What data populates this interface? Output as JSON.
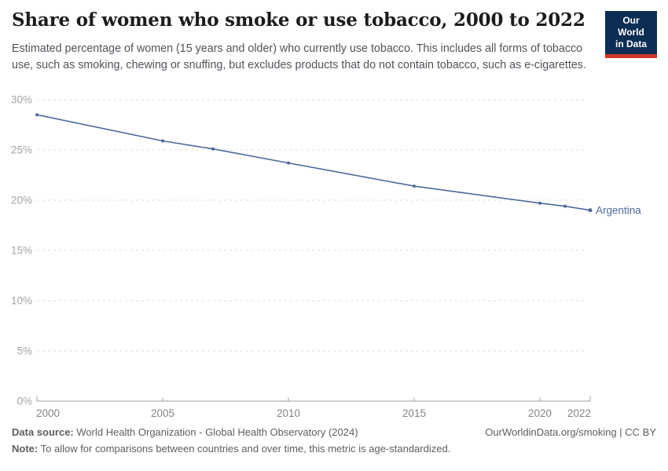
{
  "header": {
    "title": "Share of women who smoke or use tobacco, 2000 to 2022",
    "subtitle": "Estimated percentage of women (15 years and older) who currently use tobacco. This includes all forms of tobacco use, such as smoking, chewing or snuffing, but excludes products that do not contain tobacco, such as e-cigarettes.",
    "logo": {
      "line1": "Our World",
      "line2": "in Data",
      "bg_color": "#0d2e54",
      "stripe_color": "#d2392c"
    }
  },
  "chart_data": {
    "type": "line",
    "title": "Share of women who smoke or use tobacco, 2000 to 2022",
    "xlabel": "",
    "ylabel": "",
    "xlim": [
      2000,
      2022
    ],
    "ylim": [
      0,
      30
    ],
    "xticks": [
      2000,
      2005,
      2010,
      2015,
      2020,
      2022
    ],
    "yticks": [
      0,
      5,
      10,
      15,
      20,
      25,
      30
    ],
    "ytick_suffix": "%",
    "grid": "horizontal-dashed",
    "legend_position": "end-of-line-label",
    "series": [
      {
        "name": "Argentina",
        "color": "#4C6A9C",
        "points": [
          {
            "x": 2000,
            "y": 28.5
          },
          {
            "x": 2005,
            "y": 25.9
          },
          {
            "x": 2007,
            "y": 25.1
          },
          {
            "x": 2010,
            "y": 23.7
          },
          {
            "x": 2015,
            "y": 21.4
          },
          {
            "x": 2020,
            "y": 19.7
          },
          {
            "x": 2021,
            "y": 19.4
          },
          {
            "x": 2022,
            "y": 19.0
          }
        ]
      }
    ],
    "colors": {
      "gridline": "#dddddd",
      "axis": "#9e9e9e",
      "ytick_label": "#a3a3a3",
      "xtick_label": "#858585"
    }
  },
  "footer": {
    "data_source_label": "Data source:",
    "data_source": "World Health Organization - Global Health Observatory (2024)",
    "note_label": "Note:",
    "note": "To allow for comparisons between countries and over time, this metric is age-standardized.",
    "link": "OurWorldinData.org/smoking | CC BY"
  }
}
